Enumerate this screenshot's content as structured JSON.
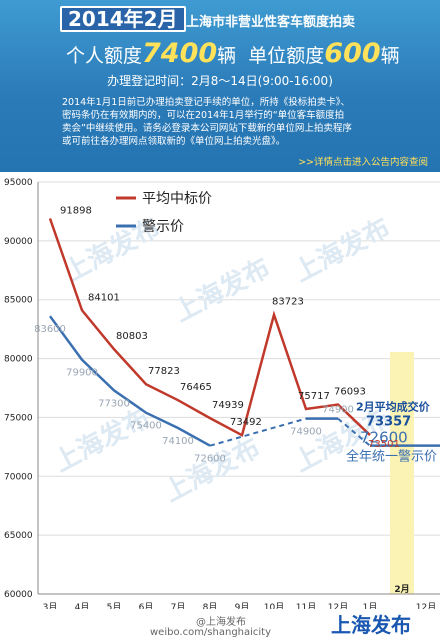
{
  "header": {
    "date_title": "2014年2月",
    "subtitle": "上海市非营业性客车额度拍卖",
    "personal_label": "个人额度",
    "personal_value": "7400",
    "personal_unit": "辆",
    "unit_label": "单位额度",
    "unit_value": "600",
    "unit_unit": "辆",
    "registration": "办理登记时间：2月8～14日(9:00-16:00)",
    "notice": "2014年1月1日前已办理拍卖登记手续的单位，所持《投标拍卖卡》、密码条仍在有效期内的，可以在2014年1月举行的“单位客车额度拍卖会”中继续使用。请务必登录本公司网站下载新的单位网上拍卖程序或可前往各办理网点领取新的《单位网上拍卖光盘》。",
    "notice_link": ">>详情点击进入公告内容查阅"
  },
  "chart_data": {
    "type": "line",
    "categories": [
      "3月",
      "4月",
      "5月",
      "6月",
      "7月",
      "8月",
      "9月",
      "10月",
      "11月",
      "12月",
      "1月",
      "2月",
      "12月"
    ],
    "series": [
      {
        "name": "平均中标价",
        "color": "#c0392b",
        "values": [
          91898,
          84101,
          80803,
          77823,
          76465,
          74939,
          73492,
          83723,
          75717,
          76093,
          73501,
          null,
          null
        ]
      },
      {
        "name": "警示价",
        "color": "#3a6fb0",
        "values": [
          83600,
          79900,
          77300,
          75400,
          74100,
          72600,
          null,
          null,
          74900,
          74900,
          null,
          null,
          null
        ]
      }
    ],
    "warning_price_line": {
      "value": 72600,
      "label": "全年统一警示价"
    },
    "current_month": {
      "label": "2月",
      "avg_price_label": "2月平均成交价",
      "avg_price": "73357"
    },
    "yticks": [
      60000,
      65000,
      70000,
      75000,
      80000,
      85000,
      90000,
      95000
    ],
    "ylim": [
      60000,
      95000
    ],
    "watermark": "上海发布"
  },
  "footer": {
    "brand": "上海发布",
    "url": "weibo.com/shanghaicity",
    "handle": "@上海发布"
  }
}
